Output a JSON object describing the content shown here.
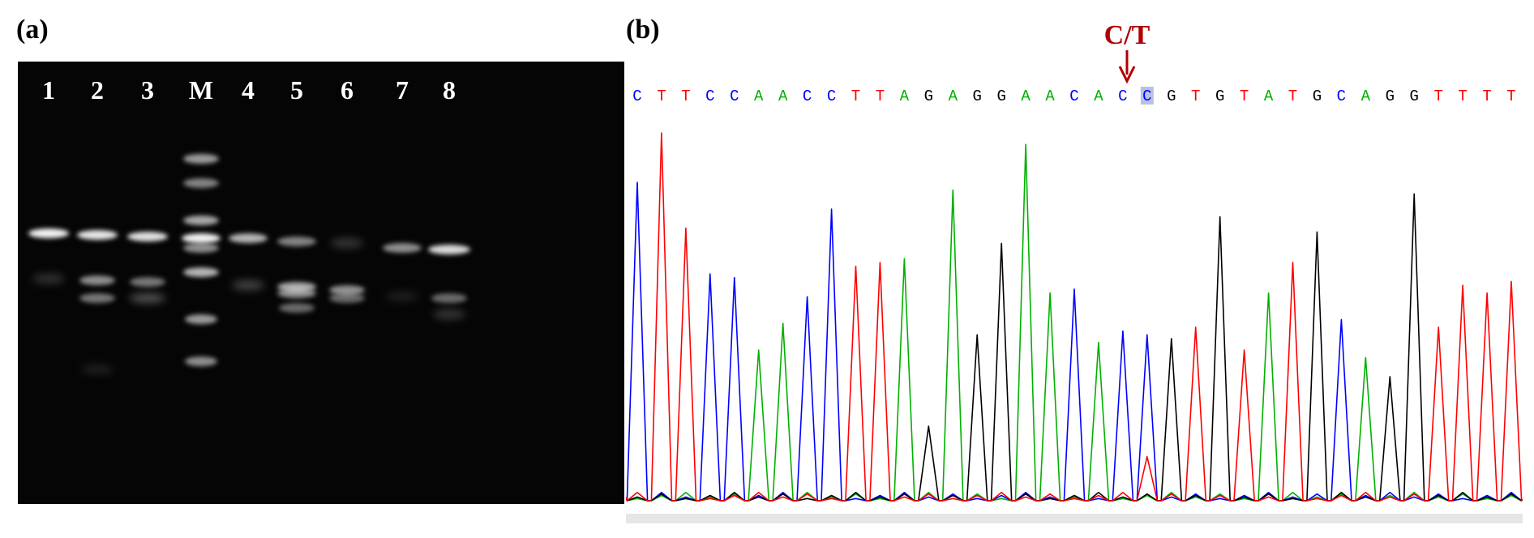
{
  "panel_a": {
    "label": "(a)",
    "lane_labels": [
      "1",
      "2",
      "3",
      "M",
      "4",
      "5",
      "6",
      "7",
      "8"
    ]
  },
  "panel_b": {
    "label": "(b)",
    "snp_label": "C/T",
    "sequence": [
      "C",
      "T",
      "T",
      "C",
      "C",
      "A",
      "A",
      "C",
      "C",
      "T",
      "T",
      "A",
      "G",
      "A",
      "G",
      "G",
      "A",
      "A",
      "C",
      "A",
      "C",
      "C",
      "G",
      "T",
      "G",
      "T",
      "A",
      "T",
      "G",
      "C",
      "A",
      "G",
      "G",
      "T",
      "T",
      "T",
      "T"
    ],
    "highlighted_index": 21,
    "base_colors": {
      "A": "#00b000",
      "C": "#0000ff",
      "G": "#000000",
      "T": "#ff0000"
    }
  }
}
